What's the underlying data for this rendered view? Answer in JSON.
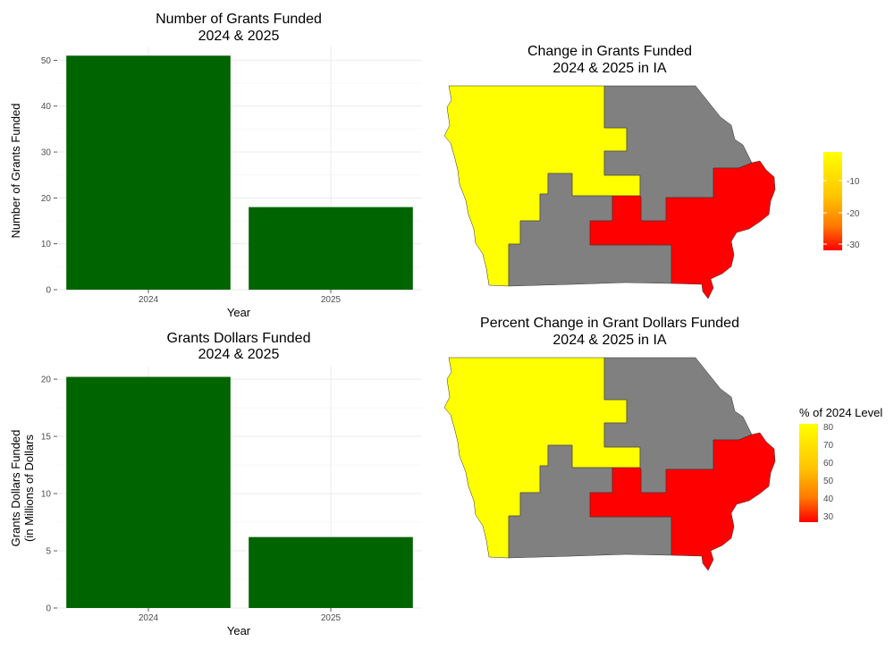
{
  "charts": [
    {
      "type": "bar",
      "title_line1": "Number of Grants Funded",
      "title_line2": "2024 & 2025",
      "xlabel": "Year",
      "ylabel": "Number of Grants Funded",
      "categories": [
        "2024",
        "2025"
      ],
      "values": [
        51,
        18
      ],
      "ylim": [
        0,
        53
      ],
      "yticks": [
        "0",
        "10",
        "20",
        "30",
        "40",
        "50"
      ],
      "bar_color": "#006400"
    },
    {
      "type": "bar",
      "title_line1": "Grants Dollars Funded",
      "title_line2": "2024 & 2025",
      "xlabel": "Year",
      "ylabel_line1": "Grants Dollars Funded",
      "ylabel_line2": "(in Millions of Dollars",
      "categories": [
        "2024",
        "2025"
      ],
      "values": [
        20.2,
        6.2
      ],
      "ylim": [
        0,
        21.1
      ],
      "yticks": [
        "0",
        "5",
        "10",
        "15",
        "20"
      ],
      "bar_color": "#006400"
    }
  ],
  "maps": [
    {
      "type": "choropleth",
      "title_line1": "Change in Grants Funded",
      "title_line2": "2024 & 2025 in IA",
      "legend_title": "",
      "legend_ticks": [
        "-10",
        "-20",
        "-30"
      ],
      "region_colors": {
        "west": "#ffff00",
        "northeast": "#808080",
        "southcentral": "#808080",
        "southeast": "#ff0000"
      }
    },
    {
      "type": "choropleth",
      "title_line1": "Percent Change in Grant Dollars Funded",
      "title_line2": "2024 & 2025 in IA",
      "legend_title": "% of 2024 Level",
      "legend_ticks": [
        "80",
        "70",
        "60",
        "50",
        "40",
        "30"
      ],
      "region_colors": {
        "west": "#ffff00",
        "northeast": "#808080",
        "southcentral": "#808080",
        "southeast": "#ff0000"
      }
    }
  ],
  "chart_data": [
    {
      "type": "bar",
      "title": "Number of Grants Funded 2024 & 2025",
      "xlabel": "Year",
      "ylabel": "Number of Grants Funded",
      "categories": [
        "2024",
        "2025"
      ],
      "values": [
        51,
        18
      ],
      "ylim": [
        0,
        53
      ]
    },
    {
      "type": "bar",
      "title": "Grants Dollars Funded 2024 & 2025",
      "xlabel": "Year",
      "ylabel": "Grants Dollars Funded (in Millions of Dollars",
      "categories": [
        "2024",
        "2025"
      ],
      "values": [
        20.2,
        6.2
      ],
      "ylim": [
        0,
        21.1
      ]
    }
  ]
}
